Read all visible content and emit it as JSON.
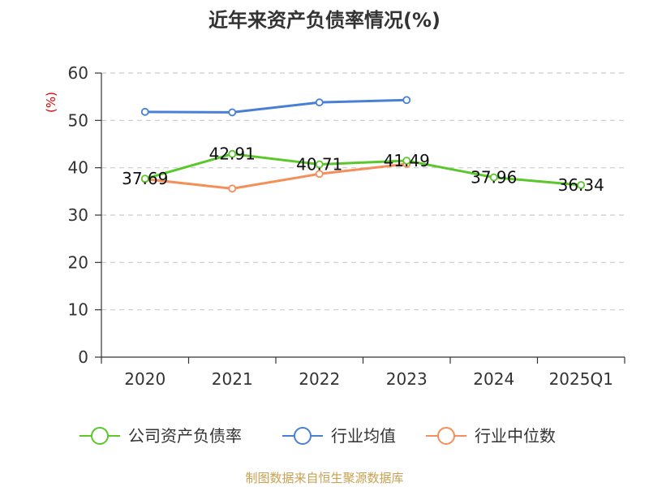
{
  "chart_data": {
    "type": "line",
    "title": "近年来资产负债率情况(%)",
    "ylabel": "(%)",
    "categories": [
      "2020",
      "2021",
      "2022",
      "2023",
      "2024",
      "2025Q1"
    ],
    "ylim": [
      0,
      60
    ],
    "yticks": [
      "0",
      "10",
      "20",
      "30",
      "40",
      "50",
      "60"
    ],
    "grid": true,
    "legend_position": "bottom",
    "series": [
      {
        "name": "公司资产负债率",
        "color": "#5ac72a",
        "values": [
          37.69,
          42.91,
          40.71,
          41.49,
          37.96,
          36.34
        ],
        "labels": [
          "37.69",
          "42.91",
          "40.71",
          "41.49",
          "37.96",
          "36.34"
        ]
      },
      {
        "name": "行业均值",
        "color": "#4a7fd6",
        "values": [
          51.8,
          51.7,
          53.8,
          54.3,
          null,
          null
        ]
      },
      {
        "name": "行业中位数",
        "color": "#f58f5a",
        "values": [
          37.6,
          35.6,
          38.7,
          40.8,
          null,
          null
        ]
      }
    ],
    "source": "制图数据来自恒生聚源数据库",
    "colors": {
      "axis": "#333333",
      "grid": "#cccccc",
      "unit": "#dd0000",
      "source": "#c8a050"
    }
  }
}
